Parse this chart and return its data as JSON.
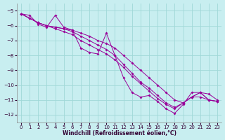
{
  "xlabel": "Windchill (Refroidissement éolien,°C)",
  "bg_color": "#c8eef0",
  "grid_color": "#a0d8d8",
  "line_color": "#990099",
  "xlim": [
    -0.5,
    23.5
  ],
  "ylim": [
    -12.5,
    -4.5
  ],
  "xticks": [
    0,
    1,
    2,
    3,
    4,
    5,
    6,
    7,
    8,
    9,
    10,
    11,
    12,
    13,
    14,
    15,
    16,
    17,
    18,
    19,
    20,
    21,
    22,
    23
  ],
  "yticks": [
    -12,
    -11,
    -10,
    -9,
    -8,
    -7,
    -6,
    -5
  ],
  "line1_x": [
    0,
    1,
    2,
    3,
    4,
    5,
    6,
    7,
    8,
    9,
    10,
    11,
    12,
    13,
    14,
    15,
    16,
    17,
    18,
    19,
    20,
    21,
    22,
    23
  ],
  "line1_y": [
    -5.2,
    -5.5,
    -5.8,
    -6.0,
    -6.1,
    -6.2,
    -6.3,
    -6.5,
    -6.7,
    -7.0,
    -7.2,
    -7.5,
    -8.0,
    -8.5,
    -9.0,
    -9.5,
    -10.0,
    -10.5,
    -11.0,
    -11.2,
    -10.8,
    -10.8,
    -11.0,
    -11.1
  ],
  "line2_x": [
    0,
    1,
    2,
    3,
    4,
    5,
    6,
    7,
    8,
    9,
    10,
    11,
    12,
    13,
    14,
    15,
    16,
    17,
    18,
    19,
    20,
    21,
    22,
    23
  ],
  "line2_y": [
    -5.2,
    -5.5,
    -5.8,
    -6.0,
    -6.1,
    -6.2,
    -6.4,
    -6.7,
    -7.0,
    -7.3,
    -7.6,
    -8.0,
    -8.6,
    -9.2,
    -9.8,
    -10.2,
    -10.7,
    -11.2,
    -11.5,
    -11.2,
    -10.8,
    -10.5,
    -11.0,
    -11.1
  ],
  "line3_x": [
    0,
    1,
    2,
    3,
    4,
    5,
    6,
    7,
    8,
    9,
    10,
    11,
    12,
    13,
    14,
    15,
    16,
    17,
    18,
    19,
    20,
    21,
    22,
    23
  ],
  "line3_y": [
    -5.2,
    -5.5,
    -5.8,
    -6.0,
    -6.2,
    -6.4,
    -6.6,
    -7.0,
    -7.3,
    -7.6,
    -7.9,
    -8.3,
    -8.8,
    -9.4,
    -9.9,
    -10.4,
    -10.9,
    -11.3,
    -11.6,
    -11.2,
    -10.8,
    -10.5,
    -11.0,
    -11.1
  ],
  "line4_x": [
    0,
    1,
    2,
    3,
    4,
    5,
    6,
    7,
    8,
    9,
    10,
    11,
    12,
    13,
    14,
    15,
    16,
    17,
    18,
    19,
    20,
    21,
    22,
    23
  ],
  "line4_y": [
    -5.2,
    -5.3,
    -5.9,
    -6.1,
    -5.3,
    -6.1,
    -6.3,
    -7.5,
    -7.8,
    -7.9,
    -6.5,
    -8.0,
    -9.5,
    -10.5,
    -10.8,
    -10.7,
    -11.1,
    -11.6,
    -11.9,
    -11.3,
    -10.5,
    -10.5,
    -10.6,
    -11.0
  ]
}
